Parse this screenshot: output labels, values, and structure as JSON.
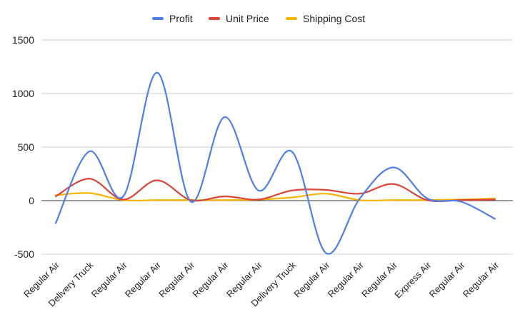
{
  "chart_data": {
    "type": "line",
    "title": "",
    "xlabel": "",
    "ylabel": "",
    "categories": [
      "Regular Air",
      "Delivery Truck",
      "Regular Air",
      "Regular Air",
      "Regular Air",
      "Regular Air",
      "Regular Air",
      "Delivery Truck",
      "Regular Air",
      "Regular Air",
      "Regular Air",
      "Express Air",
      "Regular Air",
      "Regular Air"
    ],
    "ylim": [
      -500,
      1500
    ],
    "yticks": [
      "-500",
      "0",
      "500",
      "1000",
      "1500"
    ],
    "grid": true,
    "smooth": true,
    "legend_position": "top",
    "series": [
      {
        "name": "Profit",
        "color": "#4e7ee8",
        "values": [
          -210,
          460,
          40,
          1195,
          -10,
          780,
          95,
          455,
          -490,
          20,
          310,
          20,
          -10,
          -170
        ]
      },
      {
        "name": "Unit Price",
        "color": "#db4437",
        "values": [
          40,
          205,
          10,
          190,
          5,
          40,
          10,
          95,
          100,
          65,
          155,
          5,
          5,
          10
        ]
      },
      {
        "name": "Shipping Cost",
        "color": "#f4b400",
        "values": [
          50,
          70,
          5,
          5,
          5,
          5,
          10,
          30,
          65,
          5,
          5,
          5,
          10,
          20
        ]
      }
    ]
  }
}
